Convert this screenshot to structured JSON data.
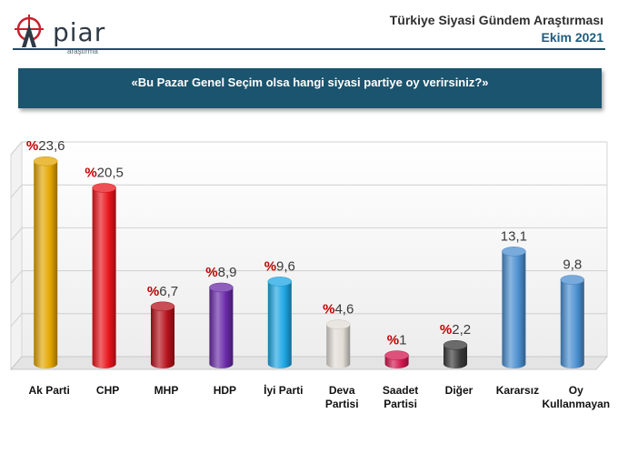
{
  "header": {
    "logo_text": "piar",
    "logo_sub": "araştırma",
    "title": "Türkiye Siyasi Gündem Araştırması",
    "date": "Ekim 2021"
  },
  "colors": {
    "accent": "#1b546e",
    "percent_sign": "#c00000"
  },
  "chart_data": {
    "type": "bar",
    "title": "«Bu Pazar Genel Seçim olsa hangi siyasi partiye oy verirsiniz?»",
    "categories": [
      [
        "Ak Parti"
      ],
      [
        "CHP"
      ],
      [
        "MHP"
      ],
      [
        "HDP"
      ],
      [
        "İyi Parti"
      ],
      [
        "Deva",
        "Partisi"
      ],
      [
        "Saadet",
        "Partisi"
      ],
      [
        "Diğer"
      ],
      [
        "Kararsız"
      ],
      [
        "Oy",
        "Kullanmayan"
      ]
    ],
    "values": [
      23.6,
      20.5,
      6.7,
      8.9,
      9.6,
      4.6,
      1,
      2.2,
      13.1,
      9.8
    ],
    "value_labels": [
      "23,6",
      "20,5",
      "6,7",
      "8,9",
      "9,6",
      "4,6",
      "1",
      "2,2",
      "13,1",
      "9,8"
    ],
    "percent_prefix": [
      true,
      true,
      true,
      true,
      true,
      true,
      true,
      true,
      false,
      false
    ],
    "percent_sign": "%",
    "bar_colors": [
      "#e3a500",
      "#e8141b",
      "#b5111b",
      "#6a2aa8",
      "#1ea6e4",
      "#e2dcd6",
      "#d3174f",
      "#3a3a3a",
      "#4b8fd0",
      "#4b8fd0"
    ],
    "ylim": [
      0,
      25
    ],
    "grid": true
  }
}
